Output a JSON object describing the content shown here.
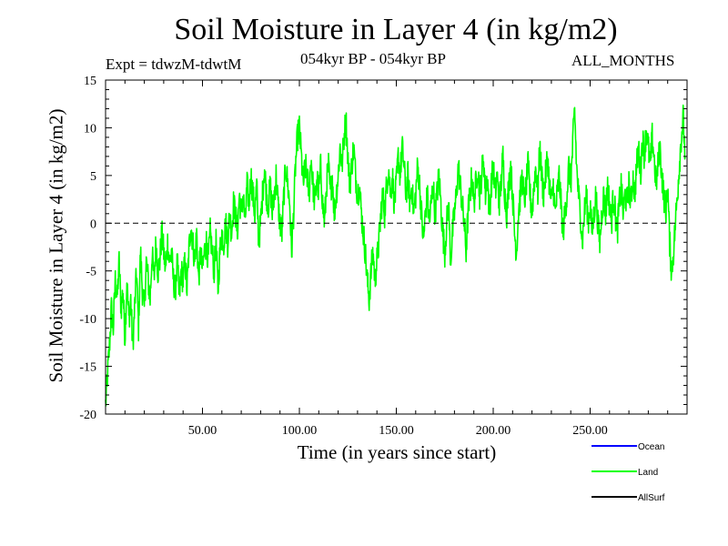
{
  "chart_data": {
    "type": "line",
    "title": "Soil Moisture in Layer 4 (in kg/m2)",
    "subtitle_left": "Expt = tdwzM-tdwtM",
    "subtitle_center": "054kyr BP - 054kyr BP",
    "subtitle_right": "ALL_MONTHS",
    "xlabel": "Time (in years since start)",
    "ylabel": "Soil Moisture in Layer 4 (in kg/m2)",
    "xlim": [
      0,
      300
    ],
    "ylim": [
      -20,
      15
    ],
    "x_ticks": [
      50,
      100,
      150,
      200,
      250
    ],
    "x_tick_labels": [
      "50.00",
      "100.00",
      "150.00",
      "200.00",
      "250.00"
    ],
    "y_ticks": [
      -20,
      -15,
      -10,
      -5,
      0,
      5,
      10,
      15
    ],
    "y_tick_labels": [
      "-20",
      "-15",
      "-10",
      "-5",
      "0",
      "5",
      "10",
      "15"
    ],
    "reference_line": {
      "y": 0,
      "style": "dashed",
      "color": "#000000"
    },
    "grid": false,
    "legend_position": "bottom-right",
    "series": [
      {
        "name": "Ocean",
        "color": "#0000ff",
        "values": []
      },
      {
        "name": "Land",
        "color": "#00ff00",
        "keypoints": [
          [
            0,
            -19
          ],
          [
            1,
            -16
          ],
          [
            2,
            -13
          ],
          [
            3,
            -9
          ],
          [
            4,
            -11
          ],
          [
            5,
            -6
          ],
          [
            6,
            -8
          ],
          [
            7,
            -4
          ],
          [
            8,
            -9
          ],
          [
            9,
            -7
          ],
          [
            10,
            -12
          ],
          [
            11,
            -6
          ],
          [
            12,
            -10
          ],
          [
            13,
            -8
          ],
          [
            14,
            -13
          ],
          [
            15,
            -9
          ],
          [
            16,
            -5
          ],
          [
            17,
            -11
          ],
          [
            18,
            -3
          ],
          [
            19,
            -7
          ],
          [
            20,
            -9
          ],
          [
            21,
            -4
          ],
          [
            22,
            -6
          ],
          [
            23,
            -8
          ],
          [
            24,
            -3
          ],
          [
            25,
            -6
          ],
          [
            26,
            -2
          ],
          [
            27,
            -5
          ],
          [
            28,
            -4
          ],
          [
            29,
            -1
          ],
          [
            30,
            -3
          ],
          [
            31,
            -5
          ],
          [
            32,
            -2
          ],
          [
            33,
            -4
          ],
          [
            34,
            -3
          ],
          [
            35,
            -6
          ],
          [
            36,
            -7
          ],
          [
            37,
            -4
          ],
          [
            38,
            -8
          ],
          [
            39,
            -5
          ],
          [
            40,
            -6
          ],
          [
            41,
            -4
          ],
          [
            42,
            -7
          ],
          [
            43,
            -3
          ],
          [
            44,
            0
          ],
          [
            45,
            -2
          ],
          [
            46,
            -4
          ],
          [
            47,
            -1
          ],
          [
            48,
            -6
          ],
          [
            49,
            -3
          ],
          [
            50,
            -5
          ],
          [
            51,
            -3
          ],
          [
            52,
            -2
          ],
          [
            53,
            -4
          ],
          [
            54,
            -1
          ],
          [
            55,
            -3
          ],
          [
            56,
            -5
          ],
          [
            57,
            -2
          ],
          [
            58,
            -7
          ],
          [
            59,
            -3
          ],
          [
            60,
            -1
          ],
          [
            61,
            -2
          ],
          [
            62,
            0
          ],
          [
            63,
            -2
          ],
          [
            64,
            1
          ],
          [
            65,
            -1
          ],
          [
            66,
            2
          ],
          [
            67,
            1
          ],
          [
            68,
            -1
          ],
          [
            69,
            3
          ],
          [
            70,
            1
          ],
          [
            71,
            3
          ],
          [
            72,
            0
          ],
          [
            73,
            4
          ],
          [
            74,
            2
          ],
          [
            75,
            5
          ],
          [
            76,
            3
          ],
          [
            77,
            1
          ],
          [
            78,
            4
          ],
          [
            79,
            -2
          ],
          [
            80,
            0
          ],
          [
            81,
            3
          ],
          [
            82,
            6
          ],
          [
            83,
            3
          ],
          [
            84,
            2
          ],
          [
            85,
            4
          ],
          [
            86,
            1
          ],
          [
            87,
            3
          ],
          [
            88,
            5
          ],
          [
            89,
            2
          ],
          [
            90,
            0
          ],
          [
            91,
            -1
          ],
          [
            92,
            3
          ],
          [
            93,
            6
          ],
          [
            94,
            4
          ],
          [
            95,
            2
          ],
          [
            96,
            -3
          ],
          [
            97,
            1
          ],
          [
            98,
            6
          ],
          [
            99,
            9
          ],
          [
            100,
            10
          ],
          [
            101,
            7
          ],
          [
            102,
            4
          ],
          [
            103,
            6
          ],
          [
            104,
            5
          ],
          [
            105,
            3
          ],
          [
            106,
            7
          ],
          [
            107,
            4
          ],
          [
            108,
            2
          ],
          [
            109,
            5
          ],
          [
            110,
            3
          ],
          [
            111,
            6
          ],
          [
            112,
            2
          ],
          [
            113,
            0
          ],
          [
            114,
            4
          ],
          [
            115,
            6
          ],
          [
            116,
            3
          ],
          [
            117,
            5
          ],
          [
            118,
            1
          ],
          [
            119,
            3
          ],
          [
            120,
            5
          ],
          [
            121,
            8
          ],
          [
            122,
            6
          ],
          [
            123,
            9
          ],
          [
            124,
            11
          ],
          [
            125,
            7
          ],
          [
            126,
            4
          ],
          [
            127,
            6
          ],
          [
            128,
            8
          ],
          [
            129,
            5
          ],
          [
            130,
            3
          ],
          [
            131,
            4
          ],
          [
            132,
            1
          ],
          [
            133,
            -1
          ],
          [
            134,
            -3
          ],
          [
            135,
            -6
          ],
          [
            136,
            -8
          ],
          [
            137,
            -5
          ],
          [
            138,
            -3
          ],
          [
            139,
            -6
          ],
          [
            140,
            -4
          ],
          [
            141,
            -2
          ],
          [
            142,
            1
          ],
          [
            143,
            3
          ],
          [
            144,
            1
          ],
          [
            145,
            4
          ],
          [
            146,
            6
          ],
          [
            147,
            3
          ],
          [
            148,
            5
          ],
          [
            149,
            2
          ],
          [
            150,
            4
          ],
          [
            151,
            7
          ],
          [
            152,
            5
          ],
          [
            153,
            8
          ],
          [
            154,
            6
          ],
          [
            155,
            3
          ],
          [
            156,
            5
          ],
          [
            157,
            2
          ],
          [
            158,
            4
          ],
          [
            159,
            1
          ],
          [
            160,
            3
          ],
          [
            161,
            6
          ],
          [
            162,
            4
          ],
          [
            163,
            1
          ],
          [
            164,
            -2
          ],
          [
            165,
            1
          ],
          [
            166,
            3
          ],
          [
            167,
            0
          ],
          [
            168,
            2
          ],
          [
            169,
            4
          ],
          [
            170,
            1
          ],
          [
            171,
            3
          ],
          [
            172,
            5
          ],
          [
            173,
            2
          ],
          [
            174,
            -1
          ],
          [
            175,
            -3
          ],
          [
            176,
            0
          ],
          [
            177,
            2
          ],
          [
            178,
            -4
          ],
          [
            179,
            -1
          ],
          [
            180,
            1
          ],
          [
            181,
            3
          ],
          [
            182,
            6
          ],
          [
            183,
            4
          ],
          [
            184,
            2
          ],
          [
            185,
            0
          ],
          [
            186,
            -3
          ],
          [
            187,
            1
          ],
          [
            188,
            3
          ],
          [
            189,
            5
          ],
          [
            190,
            2
          ],
          [
            191,
            4
          ],
          [
            192,
            6
          ],
          [
            193,
            3
          ],
          [
            194,
            5
          ],
          [
            195,
            7
          ],
          [
            196,
            3
          ],
          [
            197,
            5
          ],
          [
            198,
            1
          ],
          [
            199,
            4
          ],
          [
            200,
            6
          ],
          [
            201,
            3
          ],
          [
            202,
            5
          ],
          [
            203,
            2
          ],
          [
            204,
            4
          ],
          [
            205,
            7
          ],
          [
            206,
            3
          ],
          [
            207,
            1
          ],
          [
            208,
            4
          ],
          [
            209,
            6
          ],
          [
            210,
            3
          ],
          [
            211,
            -1
          ],
          [
            212,
            -3
          ],
          [
            213,
            1
          ],
          [
            214,
            3
          ],
          [
            215,
            5
          ],
          [
            216,
            2
          ],
          [
            217,
            4
          ],
          [
            218,
            6
          ],
          [
            219,
            3
          ],
          [
            220,
            1
          ],
          [
            221,
            4
          ],
          [
            222,
            6
          ],
          [
            223,
            3
          ],
          [
            224,
            8
          ],
          [
            225,
            5
          ],
          [
            226,
            3
          ],
          [
            227,
            5
          ],
          [
            228,
            7
          ],
          [
            229,
            4
          ],
          [
            230,
            2
          ],
          [
            231,
            4
          ],
          [
            232,
            1
          ],
          [
            233,
            3
          ],
          [
            234,
            5
          ],
          [
            235,
            2
          ],
          [
            236,
            -1
          ],
          [
            237,
            1
          ],
          [
            238,
            3
          ],
          [
            239,
            6
          ],
          [
            240,
            4
          ],
          [
            241,
            8
          ],
          [
            242,
            12
          ],
          [
            243,
            6
          ],
          [
            244,
            3
          ],
          [
            245,
            1
          ],
          [
            246,
            -2
          ],
          [
            247,
            1
          ],
          [
            248,
            3
          ],
          [
            249,
            0
          ],
          [
            250,
            2
          ],
          [
            251,
            -1
          ],
          [
            252,
            1
          ],
          [
            253,
            3
          ],
          [
            254,
            0
          ],
          [
            255,
            -2
          ],
          [
            256,
            1
          ],
          [
            257,
            3
          ],
          [
            258,
            1
          ],
          [
            259,
            4
          ],
          [
            260,
            2
          ],
          [
            261,
            0
          ],
          [
            262,
            3
          ],
          [
            263,
            1
          ],
          [
            264,
            -1
          ],
          [
            265,
            2
          ],
          [
            266,
            4
          ],
          [
            267,
            1
          ],
          [
            268,
            3
          ],
          [
            269,
            2
          ],
          [
            270,
            4
          ],
          [
            271,
            2
          ],
          [
            272,
            5
          ],
          [
            273,
            3
          ],
          [
            274,
            6
          ],
          [
            275,
            8
          ],
          [
            276,
            5
          ],
          [
            277,
            9
          ],
          [
            278,
            7
          ],
          [
            279,
            10
          ],
          [
            280,
            8
          ],
          [
            281,
            6
          ],
          [
            282,
            9
          ],
          [
            283,
            7
          ],
          [
            284,
            4
          ],
          [
            285,
            6
          ],
          [
            286,
            8
          ],
          [
            287,
            5
          ],
          [
            288,
            3
          ],
          [
            289,
            1
          ],
          [
            290,
            4
          ],
          [
            291,
            -2
          ],
          [
            292,
            -5
          ],
          [
            293,
            -3
          ],
          [
            294,
            0
          ],
          [
            295,
            3
          ],
          [
            296,
            6
          ],
          [
            297,
            9
          ],
          [
            298,
            11
          ],
          [
            299,
            7
          ]
        ]
      },
      {
        "name": "AllSurf",
        "color": "#000000",
        "values": []
      }
    ],
    "legend": [
      {
        "name": "Ocean",
        "color": "#0000ff"
      },
      {
        "name": "Land",
        "color": "#00ff00"
      },
      {
        "name": "AllSurf",
        "color": "#000000"
      }
    ]
  }
}
